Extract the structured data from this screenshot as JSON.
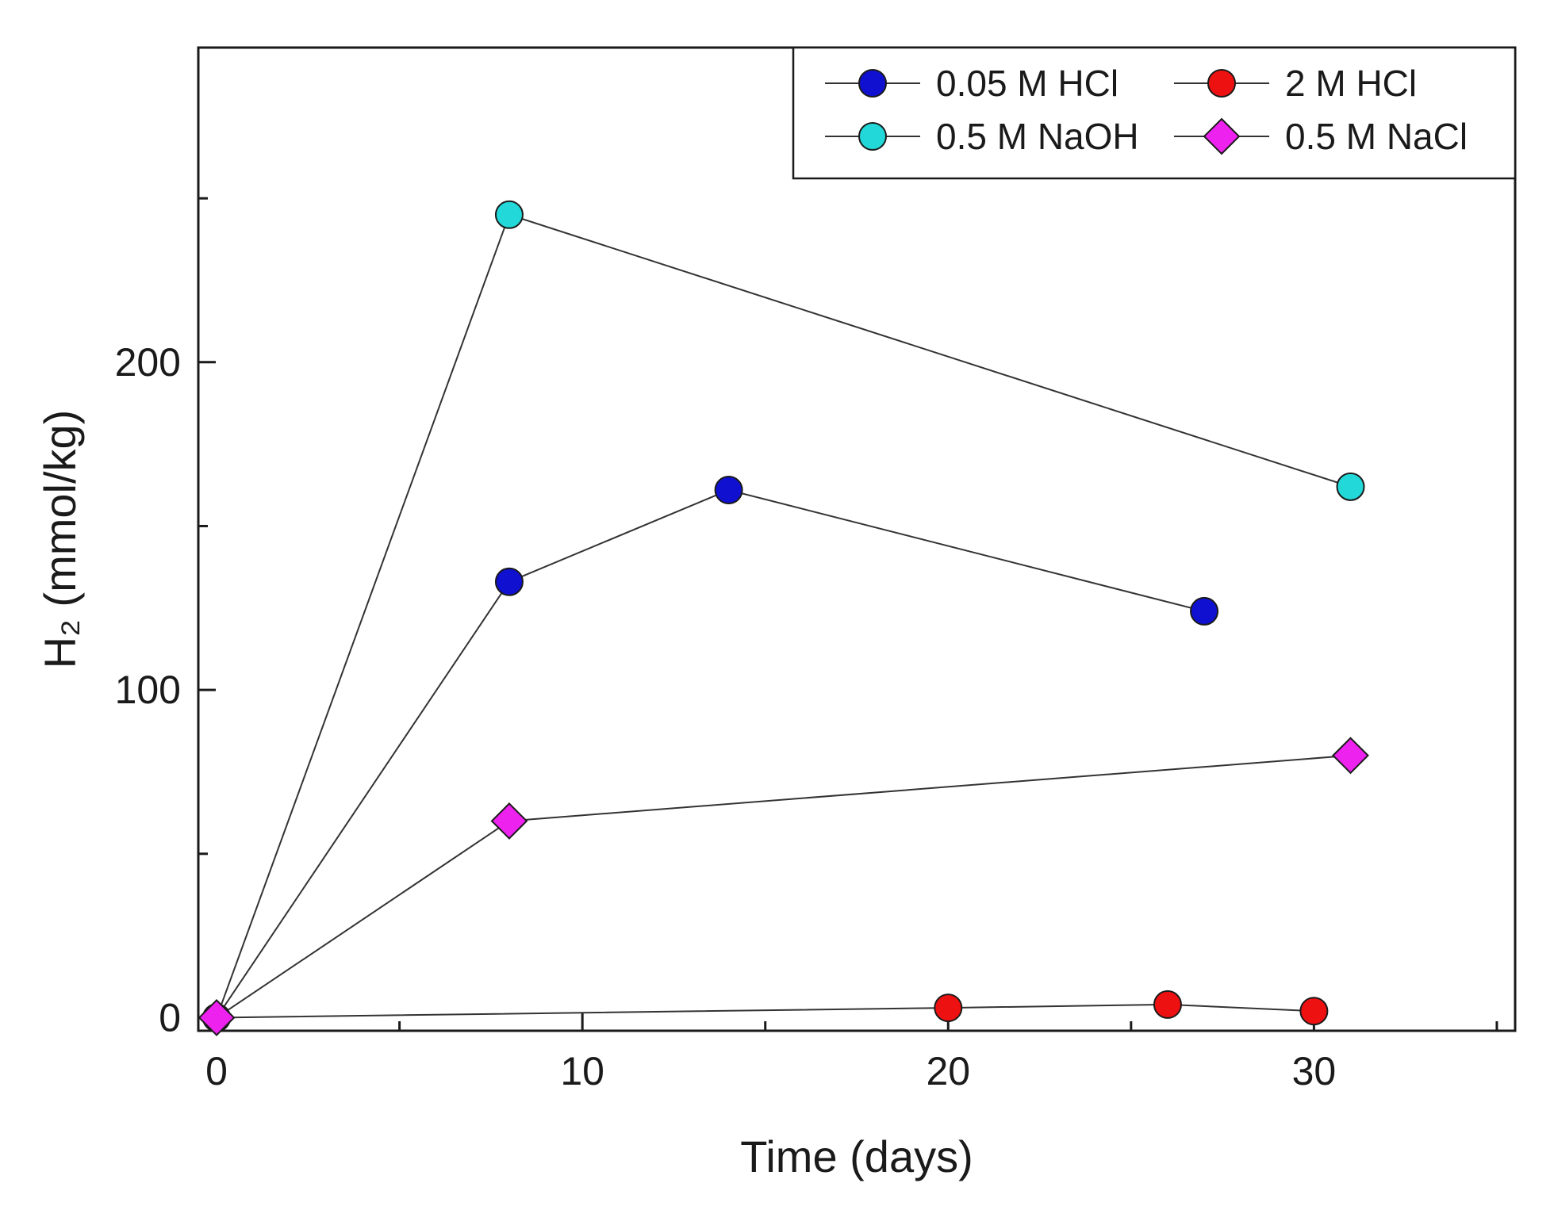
{
  "chart_data": {
    "type": "line",
    "title": "",
    "xlabel": "Time (days)",
    "ylabel": "H₂ (mmol/kg)",
    "xlim": [
      -0.5,
      35.5
    ],
    "ylim": [
      -4,
      296
    ],
    "xticks": [
      0,
      10,
      20,
      30
    ],
    "xminor": [
      5,
      15,
      25,
      35
    ],
    "yticks": [
      0,
      100,
      200
    ],
    "yminor": [
      50,
      150,
      250
    ],
    "grid": false,
    "legend": "top-right",
    "series": [
      {
        "name": "0.05 M HCl",
        "marker": "circle",
        "color": "#1010d0",
        "x": [
          0,
          8,
          14,
          27
        ],
        "y": [
          0,
          133,
          161,
          124
        ]
      },
      {
        "name": "2 M HCl",
        "marker": "circle",
        "color": "#ee1111",
        "x": [
          0,
          20,
          26,
          30
        ],
        "y": [
          0,
          3,
          4,
          2
        ]
      },
      {
        "name": "0.5 M NaOH",
        "marker": "circle",
        "color": "#22d8d8",
        "x": [
          0,
          8,
          31
        ],
        "y": [
          0,
          245,
          162
        ]
      },
      {
        "name": "0.5 M NaCl",
        "marker": "diamond",
        "color": "#ee22ee",
        "x": [
          0,
          8,
          31
        ],
        "y": [
          0,
          60,
          80
        ]
      }
    ]
  }
}
